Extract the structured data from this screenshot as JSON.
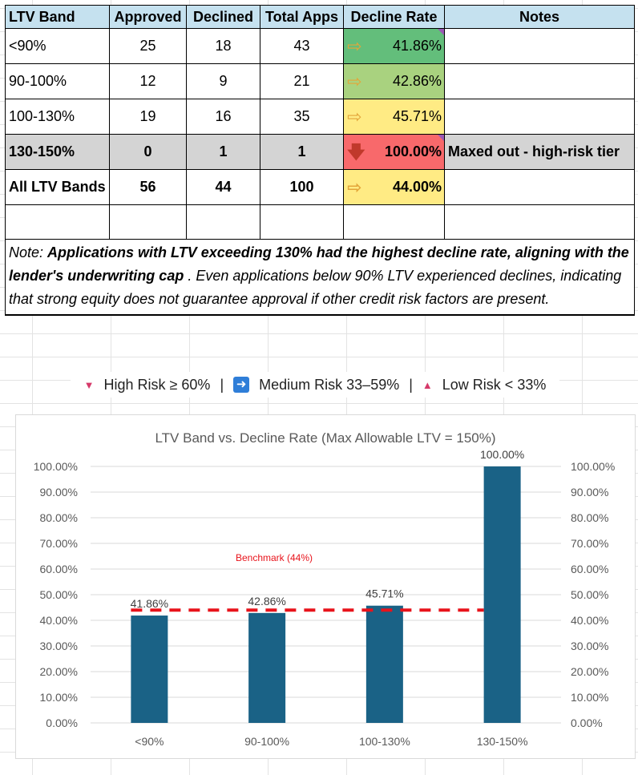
{
  "table": {
    "headers": [
      "LTV Band",
      "Approved",
      "Declined",
      "Total Apps",
      "Decline Rate",
      "Notes"
    ],
    "rows": [
      {
        "band": "<90%",
        "approved": "25",
        "declined": "18",
        "total": "43",
        "rate": "41.86%",
        "icon": "arrow-right-icon",
        "color": "#63be7b",
        "notes": ""
      },
      {
        "band": "90-100%",
        "approved": "12",
        "declined": "9",
        "total": "21",
        "rate": "42.86%",
        "icon": "arrow-right-icon",
        "color": "#a9d27f",
        "notes": ""
      },
      {
        "band": "100-130%",
        "approved": "19",
        "declined": "16",
        "total": "35",
        "rate": "45.71%",
        "icon": "arrow-right-icon",
        "color": "#ffeb84",
        "notes": ""
      },
      {
        "band": "130-150%",
        "approved": "0",
        "declined": "1",
        "total": "1",
        "rate": "100.00%",
        "icon": "arrow-down-icon",
        "color": "#f8696b",
        "notes": "Maxed out - high-risk tier"
      },
      {
        "band": "All LTV Bands",
        "approved": "56",
        "declined": "44",
        "total": "100",
        "rate": "44.00%",
        "icon": "arrow-right-icon",
        "color": "#ffeb84",
        "notes": ""
      }
    ],
    "note_prefix": "Note: ",
    "note_bold": "Applications with LTV exceeding 130% had the highest decline rate, aligning with the lender's underwriting cap",
    "note_rest": " . Even applications below 90% LTV experienced declines, indicating that strong equity does not guarantee approval if other credit risk factors are present."
  },
  "legend": {
    "high": "High Risk ≥ 60%",
    "medium": "Medium Risk 33–59%",
    "low": "Low Risk < 33%",
    "separator": "|"
  },
  "chart_data": {
    "type": "bar",
    "title": "LTV Band vs. Decline Rate (Max Allowable LTV = 150%)",
    "categories": [
      "<90%",
      "90-100%",
      "100-130%",
      "130-150%"
    ],
    "values": [
      41.86,
      42.86,
      45.71,
      100.0
    ],
    "value_labels": [
      "41.86%",
      "42.86%",
      "45.71%",
      "100.00%"
    ],
    "ylim": [
      0,
      100
    ],
    "ticks": [
      "0.00%",
      "10.00%",
      "20.00%",
      "30.00%",
      "40.00%",
      "50.00%",
      "60.00%",
      "70.00%",
      "80.00%",
      "90.00%",
      "100.00%"
    ],
    "bar_color": "#1a6286",
    "benchmark": {
      "value": 44,
      "label": "Benchmark (44%)",
      "color": "#e8131b"
    },
    "grid": true,
    "secondary_axis": true
  }
}
